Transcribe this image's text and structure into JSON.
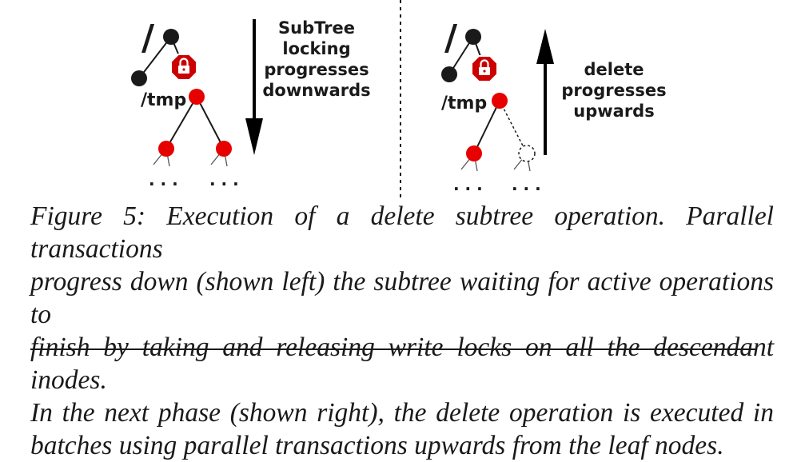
{
  "figure": {
    "left_panel": {
      "root_label": "/",
      "dir_label": "/tmp",
      "ellipsis_left": ". . .",
      "ellipsis_right": ". . .",
      "arrow_text": [
        "SubTree",
        "locking",
        "progresses",
        "downwards"
      ]
    },
    "right_panel": {
      "root_label": "/",
      "dir_label": "/tmp",
      "ellipsis_left": ". . .",
      "ellipsis_right": ". . .",
      "arrow_text": [
        "delete",
        "progresses",
        "upwards"
      ]
    },
    "colors": {
      "active_node": "#e60000",
      "black_node": "#1a1a1a",
      "lock_icon": "#cc0000"
    }
  },
  "caption": {
    "lines": [
      "Figure 5: Execution of a delete subtree operation. Parallel transactions",
      "progress down (shown left) the subtree waiting for active operations to",
      "finish by taking and releasing write locks on all the descendant inodes.",
      "In the next phase (shown right), the delete operation is executed in",
      "batches using parallel transactions upwards from the leaf nodes."
    ]
  }
}
